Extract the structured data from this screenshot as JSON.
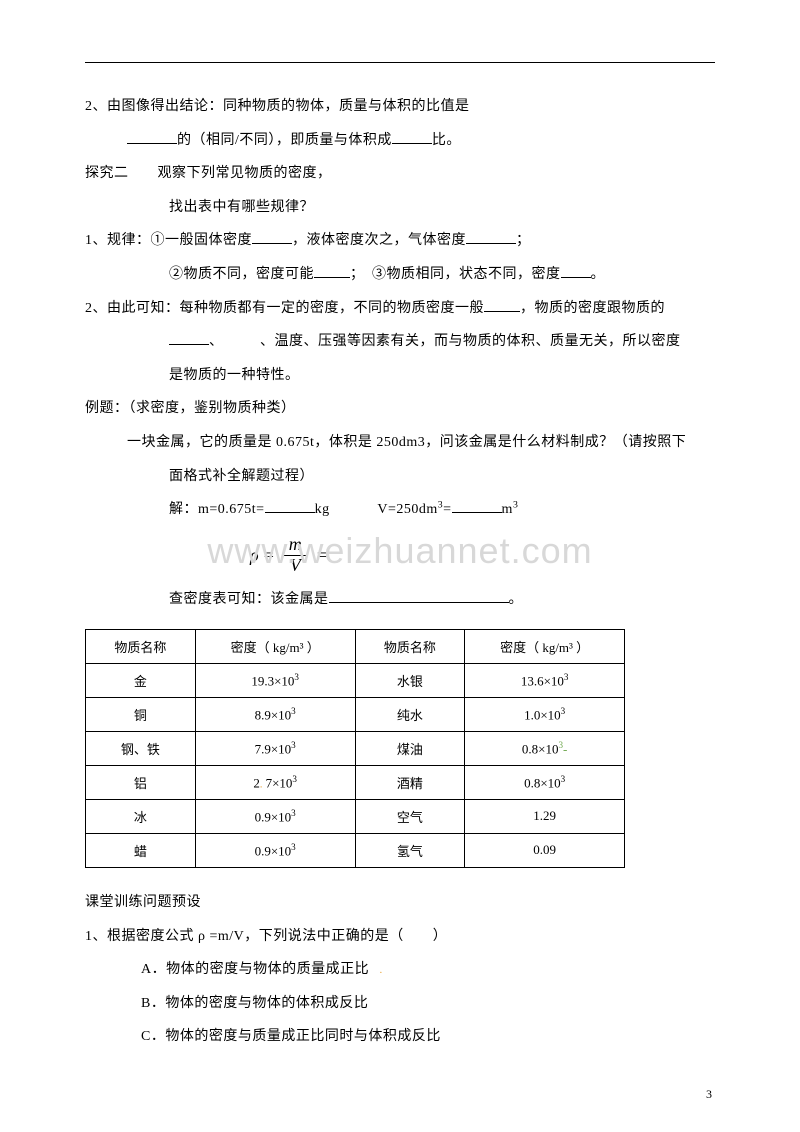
{
  "topline": true,
  "lines": {
    "l1": "2、由图像得出结论：同种物质的物体，质量与体积的比值是",
    "l2a": "的（相同/不同），即质量与体积成",
    "l2b": "比。",
    "l3": "探究二　　观察下列常见物质的密度，",
    "l4": "找出表中有哪些规律？",
    "l5a": "1、规律：①一般固体密度",
    "l5b": "，液体密度次之，气体密度",
    "l5c": "；",
    "l6a": "②物质不同，密度可能",
    "l6b": "；　③物质相同，状态不同，密度",
    "l6c": "。",
    "l7a": "2、由此可知：每种物质都有一定的密度，不同的物质密度一般",
    "l7b": "，物质的密度跟物质的",
    "l8": "、　　　、温度、压强等因素有关，而与物质的体积、质量无关，所以密度",
    "l9": "是物质的一种特性。",
    "l10": "例题：（求密度，鉴别物质种类）",
    "l11": "一块金属，它的质量是 0.675t，体积是 250dm3，问该金属是什么材料制成？（请按照下",
    "l12": "面格式补全解题过程）",
    "l13a": "解：m=0.675t=",
    "l13b": "kg",
    "l13c": "V=250dm",
    "l13d": "=",
    "l13e": "m",
    "formula_rho": "ρ",
    "formula_eq": "=",
    "formula_m": "m",
    "formula_v": "V",
    "l14a": "查密度表可知：该金属是",
    "l14b": "。",
    "l15": "课堂训练问题预设",
    "l16": "1、根据密度公式 ρ =m/V，下列说法中正确的是（　　）",
    "optA": "A．物体的密度与物体的质量成正比",
    "optB": "B．物体的密度与物体的体积成反比",
    "optC": "C．物体的密度与质量成正比同时与体积成反比"
  },
  "table": {
    "headers": [
      "物质名称",
      "密度（ kg/m³ ）",
      "物质名称",
      "密度（ kg/m³ ）"
    ],
    "rows": [
      [
        "金",
        "19.3×10³",
        "水银",
        "13.6×10³"
      ],
      [
        "铜",
        "8.9×10³",
        "纯水",
        "1.0×10³"
      ],
      [
        "钢、铁",
        "7.9×10³",
        "煤油",
        "0.8×10³"
      ],
      [
        "铝",
        "2.7×10³",
        "酒精",
        "0.8×10³"
      ],
      [
        "冰",
        "0.9×10³",
        "空气",
        "1.29"
      ],
      [
        "蜡",
        "0.9×10³",
        "氢气",
        "0.09"
      ]
    ],
    "col_widths": [
      "110px",
      "160px",
      "110px",
      "160px"
    ]
  },
  "watermark": "www.weizhuannet.com",
  "pagenum": "3",
  "colors": {
    "text": "#000000",
    "bg": "#ffffff",
    "watermark": "#d8d8d8",
    "orange": "#e8a030",
    "green": "#70a850"
  },
  "blanks": {
    "w50": 50,
    "w40": 40,
    "w36": 36,
    "w70": 70,
    "w180": 180
  }
}
